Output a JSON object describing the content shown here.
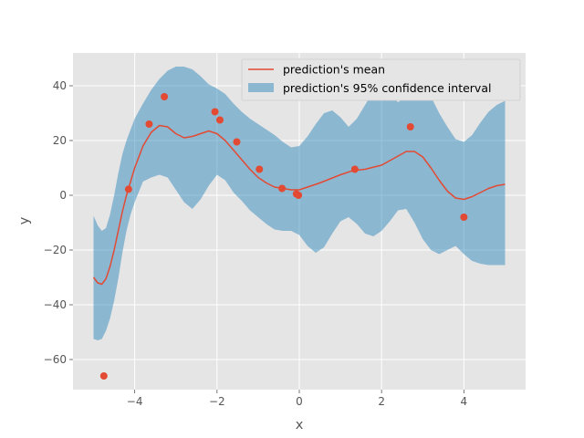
{
  "chart_data": {
    "type": "line",
    "style": "ggplot",
    "xlabel": "x",
    "ylabel": "y",
    "xlim": [
      -5.5,
      5.5
    ],
    "ylim": [
      -71,
      52
    ],
    "xticks": [
      -4,
      -2,
      0,
      2,
      4
    ],
    "yticks": [
      -60,
      -40,
      -20,
      0,
      20,
      40
    ],
    "grid": true,
    "legend_position": "top-right",
    "colors": {
      "mean": "#E24A33",
      "band": "#348ABD",
      "observed": "#E24A33",
      "background": "#E5E5E5",
      "grid": "#FFFFFF"
    },
    "series": [
      {
        "name": "prediction's mean",
        "type": "line",
        "x": [
          -5.0,
          -4.9,
          -4.8,
          -4.7,
          -4.6,
          -4.5,
          -4.4,
          -4.3,
          -4.2,
          -4.1,
          -4.0,
          -3.8,
          -3.6,
          -3.4,
          -3.2,
          -3.0,
          -2.8,
          -2.6,
          -2.4,
          -2.2,
          -2.0,
          -1.8,
          -1.6,
          -1.4,
          -1.2,
          -1.0,
          -0.8,
          -0.6,
          -0.4,
          -0.2,
          0.0,
          0.5,
          1.0,
          1.3,
          1.6,
          2.0,
          2.3,
          2.6,
          2.8,
          3.0,
          3.2,
          3.4,
          3.6,
          3.8,
          4.0,
          4.2,
          4.4,
          4.6,
          4.8,
          5.0
        ],
        "y": [
          -30,
          -32,
          -32.5,
          -30.5,
          -26,
          -20,
          -13,
          -6,
          0,
          5,
          10,
          18,
          23,
          25.5,
          25,
          22.5,
          21,
          21.5,
          22.5,
          23.5,
          22.5,
          20,
          16.5,
          13,
          9.5,
          6.5,
          4.5,
          3,
          2.5,
          2,
          2,
          4.5,
          7.5,
          9,
          9.5,
          11,
          13.5,
          16,
          16,
          14,
          10,
          5.5,
          1.5,
          -1,
          -1.5,
          -0.5,
          1,
          2.5,
          3.5,
          4
        ]
      },
      {
        "name": "prediction's 95% confidence interval",
        "type": "band",
        "x": [
          -5.0,
          -4.9,
          -4.8,
          -4.7,
          -4.6,
          -4.5,
          -4.4,
          -4.3,
          -4.2,
          -4.1,
          -4.0,
          -3.8,
          -3.6,
          -3.4,
          -3.2,
          -3.0,
          -2.8,
          -2.6,
          -2.4,
          -2.2,
          -2.0,
          -1.8,
          -1.6,
          -1.4,
          -1.2,
          -1.0,
          -0.8,
          -0.6,
          -0.4,
          -0.2,
          0.0,
          0.2,
          0.4,
          0.6,
          0.8,
          1.0,
          1.2,
          1.4,
          1.6,
          1.8,
          2.0,
          2.2,
          2.4,
          2.6,
          2.8,
          3.0,
          3.2,
          3.4,
          3.6,
          3.8,
          4.0,
          4.2,
          4.4,
          4.6,
          4.8,
          5.0
        ],
        "upper": [
          -7.5,
          -11,
          -13,
          -12,
          -7,
          0,
          8,
          15,
          20,
          24,
          28,
          33.5,
          38.5,
          42.5,
          45.5,
          47,
          47,
          46,
          43.5,
          40.5,
          39,
          37,
          33.5,
          30.5,
          28,
          26,
          24,
          22,
          19.5,
          17.5,
          18,
          21.5,
          26,
          30,
          31,
          28.5,
          25,
          28,
          33,
          38,
          40,
          37,
          34,
          36,
          39.5,
          40,
          36,
          30,
          25,
          20.5,
          19.5,
          22,
          26.5,
          30.5,
          33,
          34.5
        ],
        "lower": [
          -52.5,
          -53,
          -52.5,
          -49.5,
          -45,
          -38.5,
          -30.5,
          -21,
          -13,
          -7,
          -2.5,
          5,
          6.5,
          7.5,
          6.5,
          2,
          -2.5,
          -5,
          -1.5,
          3.5,
          7.5,
          5.5,
          1,
          -2,
          -5.5,
          -8,
          -10.5,
          -12.5,
          -13,
          -13,
          -14.5,
          -18.5,
          -21,
          -19,
          -14,
          -9.5,
          -8,
          -10.5,
          -14,
          -15,
          -13,
          -9.5,
          -5.5,
          -5,
          -10,
          -16,
          -20,
          -21.5,
          -20,
          -18.5,
          -21.5,
          -24,
          -25,
          -25.5,
          -25.5,
          -25.5
        ]
      },
      {
        "name": "observations",
        "type": "scatter",
        "x": [
          -4.75,
          -4.15,
          -3.65,
          -3.28,
          -2.05,
          -1.93,
          -1.52,
          -0.97,
          -0.42,
          -0.07,
          -0.02,
          1.35,
          2.7,
          4.0
        ],
        "y": [
          -66,
          2.2,
          26,
          36,
          30.5,
          27.5,
          19.5,
          9.5,
          2.5,
          0.5,
          0,
          9.5,
          25,
          -8
        ]
      }
    ]
  }
}
